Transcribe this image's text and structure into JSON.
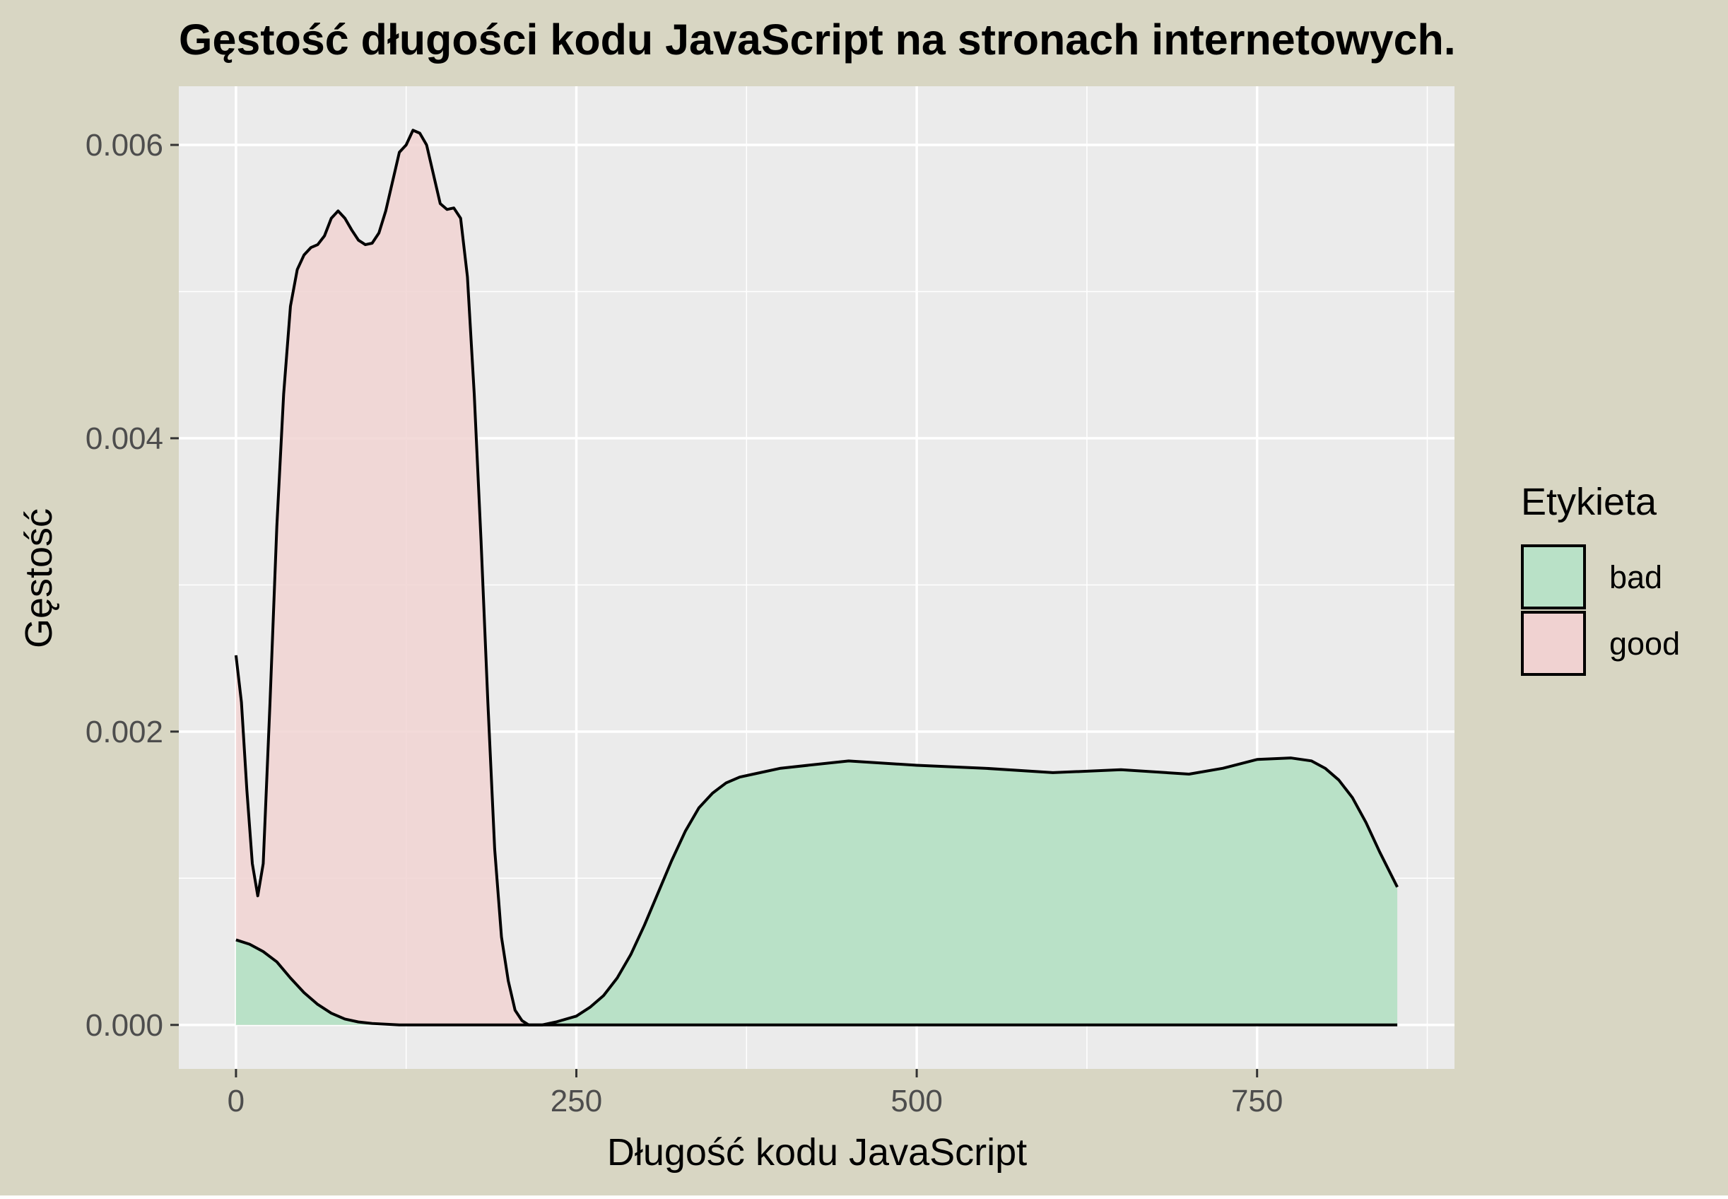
{
  "colors": {
    "background": "#d8d6c3",
    "panel": "#ebebeb",
    "grid": "#ffffff",
    "bad_fill": "#b9e1c7",
    "good_fill": "#f0d2d1",
    "overlap_fill": "#d5c8b8",
    "line": "#000000",
    "tick_text": "#4d4d4d"
  },
  "chart_data": {
    "type": "area",
    "title": "Gęstość długości kodu JavaScript na stronach internetowych.",
    "xlabel": "Długość kodu JavaScript",
    "ylabel": "Gęstość",
    "xlim": [
      -42,
      895
    ],
    "ylim": [
      -0.0003,
      0.0064
    ],
    "x_ticks": [
      0,
      250,
      500,
      750
    ],
    "x_tick_labels": [
      "0",
      "250",
      "500",
      "750"
    ],
    "y_ticks": [
      0,
      0.002,
      0.004,
      0.006
    ],
    "y_tick_labels": [
      "0.000",
      "0.002",
      "0.004",
      "0.006"
    ],
    "grid": true,
    "legend": {
      "title": "Etykieta",
      "position": "right",
      "entries": [
        "bad",
        "good"
      ]
    },
    "series": [
      {
        "name": "good",
        "x": [
          0,
          4,
          8,
          12,
          16,
          20,
          25,
          30,
          35,
          40,
          45,
          50,
          55,
          60,
          65,
          70,
          75,
          80,
          85,
          90,
          95,
          100,
          105,
          110,
          115,
          120,
          125,
          130,
          135,
          140,
          145,
          150,
          155,
          160,
          165,
          170,
          175,
          180,
          185,
          190,
          195,
          200,
          205,
          210,
          215,
          220,
          225,
          230,
          260,
          853
        ],
        "y": [
          0.00252,
          0.0022,
          0.0016,
          0.0011,
          0.00088,
          0.0011,
          0.0022,
          0.0034,
          0.0043,
          0.0049,
          0.00515,
          0.00525,
          0.0053,
          0.00532,
          0.00538,
          0.0055,
          0.00555,
          0.0055,
          0.00542,
          0.00535,
          0.00532,
          0.00533,
          0.0054,
          0.00555,
          0.00575,
          0.00595,
          0.006,
          0.0061,
          0.00608,
          0.006,
          0.0058,
          0.0056,
          0.00556,
          0.00557,
          0.0055,
          0.0051,
          0.0043,
          0.0033,
          0.0022,
          0.0012,
          0.0006,
          0.0003,
          0.0001,
          3e-05,
          0.0,
          0.0,
          0.0,
          0.0,
          0.0,
          0.0
        ]
      },
      {
        "name": "bad",
        "x": [
          0,
          10,
          20,
          30,
          40,
          50,
          60,
          70,
          80,
          90,
          100,
          120,
          150,
          200,
          225,
          235,
          250,
          260,
          270,
          280,
          290,
          300,
          310,
          320,
          330,
          340,
          350,
          360,
          370,
          380,
          400,
          450,
          500,
          550,
          600,
          650,
          700,
          725,
          750,
          775,
          790,
          800,
          810,
          820,
          830,
          840,
          853
        ],
        "y": [
          0.00058,
          0.00055,
          0.0005,
          0.00043,
          0.00032,
          0.00022,
          0.00014,
          8e-05,
          4e-05,
          2e-05,
          1e-05,
          0.0,
          0.0,
          0.0,
          0.0,
          2e-05,
          6e-05,
          0.00012,
          0.0002,
          0.00032,
          0.00048,
          0.00068,
          0.0009,
          0.00112,
          0.00132,
          0.00148,
          0.00158,
          0.00165,
          0.00169,
          0.00171,
          0.00175,
          0.0018,
          0.00177,
          0.00175,
          0.00172,
          0.00174,
          0.00171,
          0.00175,
          0.00181,
          0.00182,
          0.0018,
          0.00175,
          0.00167,
          0.00155,
          0.00138,
          0.00118,
          0.00094
        ]
      }
    ]
  }
}
